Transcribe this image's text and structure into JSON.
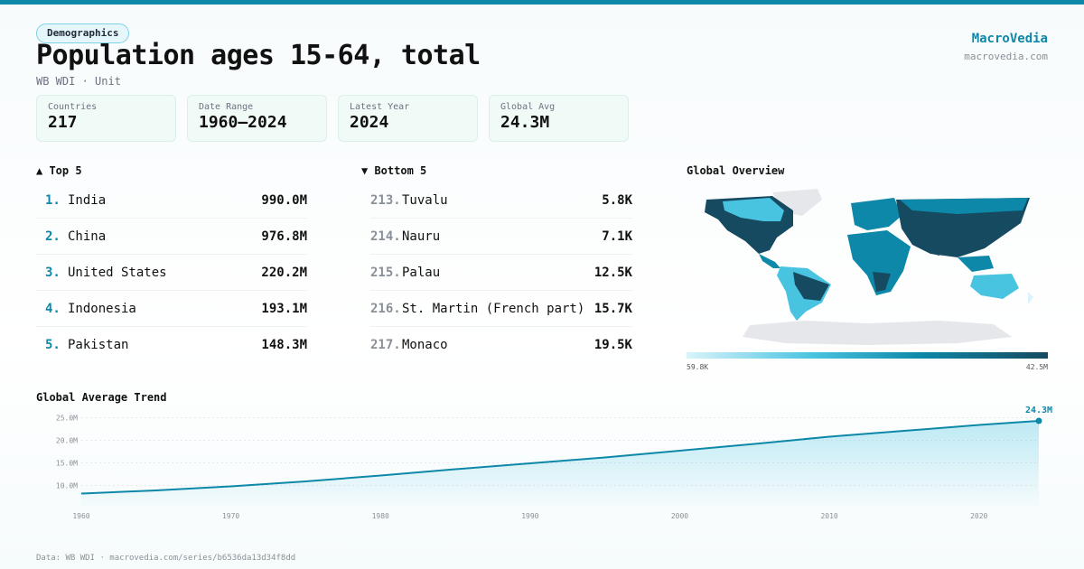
{
  "header": {
    "category": "Demographics",
    "title": "Population ages 15-64, total",
    "subtitle": "WB WDI · Unit",
    "brand": "MacroVedia",
    "brand_url": "macrovedia.com"
  },
  "stats": [
    {
      "label": "Countries",
      "value": "217"
    },
    {
      "label": "Date Range",
      "value": "1960–2024"
    },
    {
      "label": "Latest Year",
      "value": "2024"
    },
    {
      "label": "Global Avg",
      "value": "24.3M"
    }
  ],
  "top5": {
    "heading": "▲ Top 5",
    "items": [
      {
        "rank": "1.",
        "name": "India",
        "value": "990.0M"
      },
      {
        "rank": "2.",
        "name": "China",
        "value": "976.8M"
      },
      {
        "rank": "3.",
        "name": "United States",
        "value": "220.2M"
      },
      {
        "rank": "4.",
        "name": "Indonesia",
        "value": "193.1M"
      },
      {
        "rank": "5.",
        "name": "Pakistan",
        "value": "148.3M"
      }
    ]
  },
  "bottom5": {
    "heading": "▼ Bottom 5",
    "items": [
      {
        "rank": "213.",
        "name": "Tuvalu",
        "value": "5.8K"
      },
      {
        "rank": "214.",
        "name": "Nauru",
        "value": "7.1K"
      },
      {
        "rank": "215.",
        "name": "Palau",
        "value": "12.5K"
      },
      {
        "rank": "216.",
        "name": "St. Martin (French part)",
        "value": "15.7K"
      },
      {
        "rank": "217.",
        "name": "Monaco",
        "value": "19.5K"
      }
    ]
  },
  "map": {
    "heading": "Global Overview",
    "legend_min": "59.8K",
    "legend_max": "42.5M",
    "colors": [
      "#d9f4fb",
      "#48c3e0",
      "#0e88a8",
      "#164a60"
    ]
  },
  "chart_data": {
    "type": "area",
    "title": "Global Average Trend",
    "x": [
      1960,
      1965,
      1970,
      1975,
      1980,
      1985,
      1990,
      1995,
      2000,
      2005,
      2010,
      2015,
      2020,
      2024
    ],
    "values": [
      8.2,
      8.9,
      9.8,
      10.9,
      12.2,
      13.6,
      14.9,
      16.2,
      17.7,
      19.2,
      20.8,
      22.1,
      23.4,
      24.3
    ],
    "unit": "M",
    "xticks": [
      "1960",
      "1970",
      "1980",
      "1990",
      "2000",
      "2010",
      "2020"
    ],
    "yticks": [
      "10.0M",
      "15.0M",
      "20.0M",
      "25.0M"
    ],
    "ylim": [
      5.5,
      26.5
    ],
    "xlim": [
      1960,
      2024
    ],
    "last_label": "24.3M",
    "line_color": "#0e88a8"
  },
  "footer": "Data: WB WDI · macrovedia.com/series/b6536da13d34f8dd"
}
